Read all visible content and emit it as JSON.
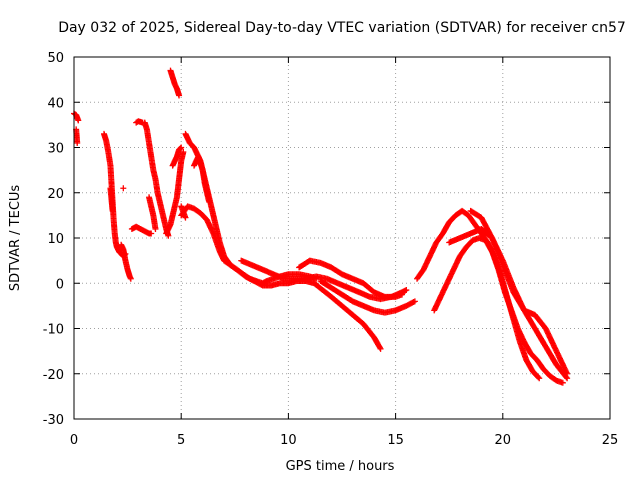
{
  "chart_data": {
    "type": "scatter",
    "title": "Day 032 of 2025, Sidereal Day-to-day VTEC variation (SDTVAR) for receiver cn57",
    "xlabel": "GPS time / hours",
    "ylabel": "SDTVAR / TECUs",
    "xlim": [
      0,
      25
    ],
    "ylim": [
      -30,
      50
    ],
    "xticks": [
      "0",
      "5",
      "10",
      "15",
      "20",
      "25"
    ],
    "yticks": [
      "50",
      "40",
      "30",
      "20",
      "10",
      "0",
      "-10",
      "-20",
      "-30"
    ],
    "grid": true,
    "marker": "+",
    "color": "#ff0000",
    "series": [
      {
        "name": "t0",
        "x": [
          0.0,
          0.1,
          0.2
        ],
        "y": [
          37.5,
          37.2,
          36.0
        ]
      },
      {
        "name": "t0b",
        "x": [
          0.1,
          0.15
        ],
        "y": [
          34.0,
          31.0
        ]
      },
      {
        "name": "t1",
        "x": [
          1.4,
          1.5,
          1.6,
          1.7,
          1.75,
          1.8,
          1.85,
          1.9,
          1.95,
          2.0,
          2.1,
          2.2,
          2.3,
          2.4
        ],
        "y": [
          33.0,
          31.5,
          29.0,
          26.0,
          22.0,
          18.0,
          14.0,
          11.0,
          9.0,
          8.0,
          7.0,
          6.5,
          6.0,
          6.5
        ]
      },
      {
        "name": "t1b",
        "x": [
          1.7,
          1.75,
          1.8
        ],
        "y": [
          21.0,
          18.5,
          16.0
        ]
      },
      {
        "name": "t2",
        "x": [
          2.2,
          2.3,
          2.4,
          2.5,
          2.6,
          2.65
        ],
        "y": [
          8.5,
          7.5,
          5.0,
          3.0,
          1.5,
          1.0
        ]
      },
      {
        "name": "t2b",
        "x": [
          2.3
        ],
        "y": [
          21.0
        ]
      },
      {
        "name": "t3",
        "x": [
          2.7,
          2.9,
          3.1,
          3.3,
          3.5,
          3.6
        ],
        "y": [
          12.0,
          12.5,
          12.0,
          11.5,
          11.0,
          11.0
        ]
      },
      {
        "name": "t3b",
        "x": [
          2.9,
          3.0,
          3.2
        ],
        "y": [
          35.5,
          35.8,
          35.5
        ]
      },
      {
        "name": "t4",
        "x": [
          3.3,
          3.4,
          3.5,
          3.6,
          3.7,
          3.8,
          3.9,
          4.0,
          4.1,
          4.2,
          4.3,
          4.4
        ],
        "y": [
          35.5,
          34.0,
          31.0,
          28.0,
          25.0,
          23.0,
          20.0,
          18.0,
          16.0,
          14.0,
          12.0,
          10.5
        ]
      },
      {
        "name": "t4b",
        "x": [
          3.5,
          3.6,
          3.7,
          3.8
        ],
        "y": [
          19.0,
          17.0,
          15.0,
          12.0
        ]
      },
      {
        "name": "t5",
        "x": [
          4.5,
          4.6,
          4.7,
          4.8,
          4.9
        ],
        "y": [
          47.0,
          45.5,
          44.0,
          43.0,
          41.5
        ]
      },
      {
        "name": "t6",
        "x": [
          4.3,
          4.5,
          4.6,
          4.7,
          4.8,
          4.9,
          5.0,
          5.1
        ],
        "y": [
          11.0,
          13.0,
          15.0,
          17.0,
          19.0,
          23.0,
          27.0,
          29.0
        ]
      },
      {
        "name": "t6b",
        "x": [
          4.6,
          4.8,
          4.9,
          5.0
        ],
        "y": [
          26.0,
          28.0,
          29.5,
          30.0
        ]
      },
      {
        "name": "t7",
        "x": [
          5.2,
          5.4,
          5.6,
          5.8,
          6.0,
          6.2,
          6.4,
          6.6,
          6.8,
          7.0,
          7.3,
          7.6,
          7.9,
          8.2,
          8.5,
          8.8,
          9.0,
          9.3,
          9.6,
          10.0,
          10.5,
          11.0,
          11.3
        ],
        "y": [
          33.0,
          31.0,
          30.0,
          28.0,
          25.0,
          21.0,
          17.0,
          13.0,
          9.0,
          6.0,
          4.0,
          3.0,
          2.0,
          1.0,
          0.5,
          0.0,
          0.5,
          1.0,
          1.5,
          2.0,
          2.0,
          1.5,
          1.0
        ]
      },
      {
        "name": "t8",
        "x": [
          5.0,
          5.3,
          5.6,
          5.9,
          6.2,
          6.5,
          6.8,
          7.0,
          7.3,
          7.6,
          8.0,
          8.4,
          8.8,
          9.2,
          9.6,
          10.0,
          10.4,
          10.8,
          11.2,
          11.6,
          12.0,
          12.5,
          13.0,
          13.5,
          14.0,
          14.3
        ],
        "y": [
          15.0,
          17.0,
          16.5,
          15.5,
          14.0,
          11.0,
          7.0,
          5.0,
          4.0,
          3.0,
          1.5,
          0.5,
          -0.5,
          -0.5,
          0.0,
          0.0,
          0.5,
          0.5,
          0.0,
          -1.5,
          -3.0,
          -5.0,
          -7.0,
          -9.0,
          -12.0,
          -14.5
        ]
      },
      {
        "name": "t8b",
        "x": [
          5.0,
          5.2
        ],
        "y": [
          17.0,
          14.5
        ]
      },
      {
        "name": "t9",
        "x": [
          5.6,
          5.8,
          5.9,
          6.0,
          6.1,
          6.3
        ],
        "y": [
          26.0,
          28.0,
          27.0,
          25.0,
          22.0,
          18.0
        ]
      },
      {
        "name": "t10",
        "x": [
          7.8,
          8.3,
          8.8,
          9.3,
          9.8,
          10.3,
          10.8,
          11.3,
          11.8,
          12.3,
          12.8,
          13.3,
          13.8,
          14.3,
          14.8,
          15.3,
          15.5
        ],
        "y": [
          5.0,
          4.0,
          3.0,
          2.0,
          1.0,
          1.0,
          1.0,
          1.5,
          1.0,
          0.0,
          -1.0,
          -2.0,
          -3.0,
          -3.5,
          -3.0,
          -2.0,
          -1.5
        ]
      },
      {
        "name": "t11",
        "x": [
          10.5,
          11.0,
          11.5,
          12.0,
          12.5,
          13.0,
          13.5,
          14.0,
          14.5,
          15.0,
          15.3
        ],
        "y": [
          3.5,
          5.0,
          4.5,
          3.5,
          2.0,
          1.0,
          0.0,
          -2.0,
          -3.0,
          -3.0,
          -2.5
        ]
      },
      {
        "name": "t12",
        "x": [
          11.5,
          12.0,
          12.5,
          13.0,
          13.5,
          14.0,
          14.5,
          15.0,
          15.5,
          15.9
        ],
        "y": [
          0.5,
          -1.0,
          -2.5,
          -4.0,
          -5.0,
          -6.0,
          -6.5,
          -6.0,
          -5.0,
          -4.0
        ]
      },
      {
        "name": "t13",
        "x": [
          16.0,
          16.3,
          16.6,
          16.9,
          17.2,
          17.5,
          17.8,
          18.1,
          18.4,
          18.7,
          19.0,
          19.3,
          19.6,
          19.9,
          20.2,
          20.5,
          20.8,
          21.1,
          21.4,
          21.7
        ],
        "y": [
          1.0,
          3.0,
          6.0,
          9.0,
          11.0,
          13.5,
          15.0,
          16.0,
          15.0,
          13.0,
          11.0,
          9.0,
          6.0,
          2.0,
          -3.0,
          -8.0,
          -13.0,
          -17.0,
          -19.5,
          -21.0
        ]
      },
      {
        "name": "t14",
        "x": [
          16.8,
          17.1,
          17.4,
          17.7,
          18.0,
          18.3,
          18.6,
          18.9,
          19.2,
          19.5,
          19.8,
          20.1,
          20.4,
          20.7,
          21.0,
          21.3,
          21.6,
          21.9,
          22.2,
          22.5,
          22.8
        ],
        "y": [
          -6.0,
          -3.0,
          0.0,
          3.0,
          6.0,
          8.0,
          9.5,
          10.0,
          9.5,
          7.0,
          3.0,
          -2.0,
          -6.0,
          -10.0,
          -13.0,
          -15.5,
          -17.0,
          -19.0,
          -20.5,
          -21.5,
          -22.0
        ]
      },
      {
        "name": "t15",
        "x": [
          17.5,
          18.0,
          18.5,
          19.0,
          19.5,
          20.0,
          20.5,
          21.0,
          21.5,
          22.0,
          22.5,
          23.0
        ],
        "y": [
          9.0,
          10.0,
          11.0,
          12.0,
          10.0,
          5.0,
          -1.0,
          -6.0,
          -10.0,
          -14.0,
          -18.0,
          -21.0
        ]
      },
      {
        "name": "t16",
        "x": [
          18.5,
          19.0,
          19.5,
          20.0,
          20.5,
          21.0,
          21.5,
          22.0,
          22.5,
          23.0
        ],
        "y": [
          16.0,
          14.5,
          10.0,
          4.0,
          -2.0,
          -6.0,
          -7.0,
          -10.0,
          -15.0,
          -20.0
        ]
      }
    ]
  }
}
